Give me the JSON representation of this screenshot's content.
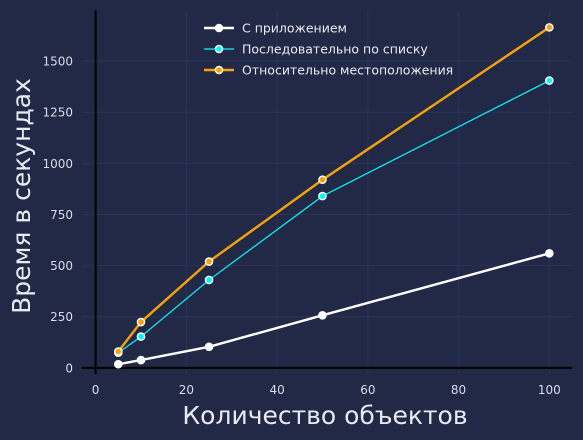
{
  "chart_data": {
    "type": "line",
    "title": "",
    "xlabel": "Количество объектов",
    "ylabel": "Время в секундах",
    "x": [
      5,
      10,
      25,
      50,
      100
    ],
    "xlim": [
      -3,
      105
    ],
    "ylim": [
      -30,
      1750
    ],
    "xticks": [
      0,
      20,
      40,
      60,
      80,
      100
    ],
    "yticks": [
      0,
      250,
      500,
      750,
      1000,
      1250,
      1500
    ],
    "grid": true,
    "legend_position": "top-center",
    "series": [
      {
        "name": "С приложением",
        "values": [
          18,
          38,
          103,
          257,
          560
        ],
        "color": "#ffffff",
        "width": 2.4
      },
      {
        "name": "Последовательно по списку",
        "values": [
          74,
          153,
          430,
          840,
          1405
        ],
        "color": "#08f7fe",
        "width": 1.2
      },
      {
        "name": "Относительно местоположения",
        "values": [
          80,
          224,
          520,
          920,
          1665
        ],
        "color": "#f5a30a",
        "width": 2.4
      }
    ]
  }
}
